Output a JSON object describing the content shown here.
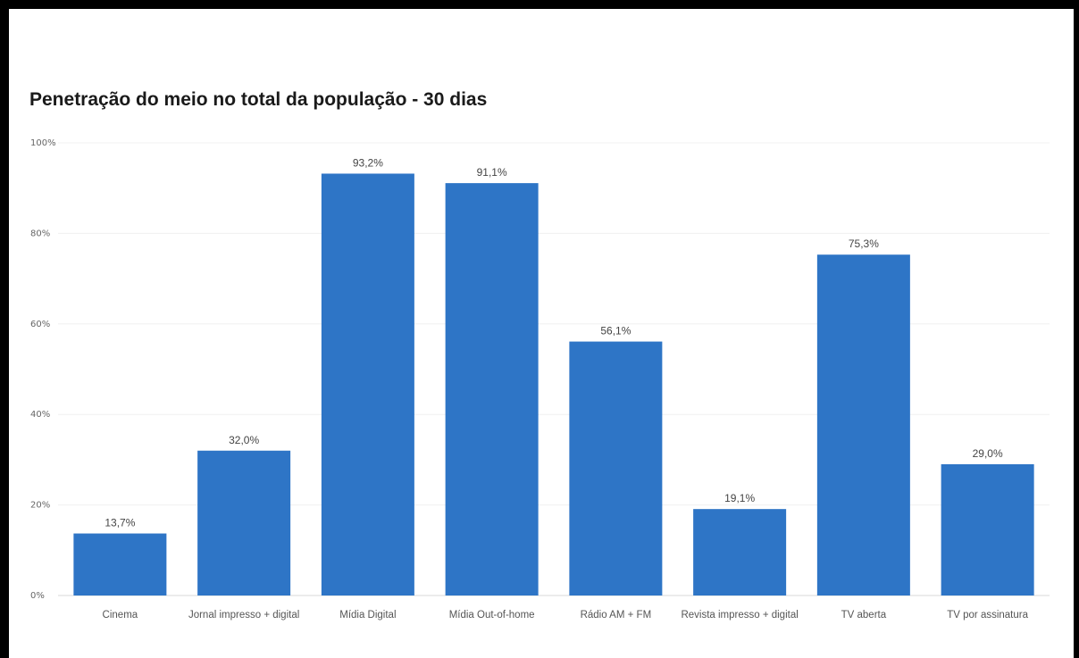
{
  "chart_data": {
    "type": "bar",
    "title": "Penetração do meio no total da população - 30 dias",
    "xlabel": "",
    "ylabel": "",
    "categories": [
      "Cinema",
      "Jornal impresso + digital",
      "Mídia Digital",
      "Mídia Out-of-home",
      "Rádio AM + FM",
      "Revista impresso + digital",
      "TV aberta",
      "TV por assinatura"
    ],
    "values": [
      13.7,
      32.0,
      93.2,
      91.1,
      56.1,
      19.1,
      75.3,
      29.0
    ],
    "data_labels": [
      "13,7%",
      "32,0%",
      "93,2%",
      "91,1%",
      "56,1%",
      "19,1%",
      "75,3%",
      "29,0%"
    ],
    "ylim": [
      0,
      100
    ],
    "yticks": [
      0,
      20,
      40,
      60,
      80,
      100
    ],
    "ytick_labels": [
      "0%",
      "20%",
      "40%",
      "60%",
      "80%",
      "100%"
    ],
    "grid": true,
    "legend": "none",
    "bar_color": "#2e75c6"
  }
}
